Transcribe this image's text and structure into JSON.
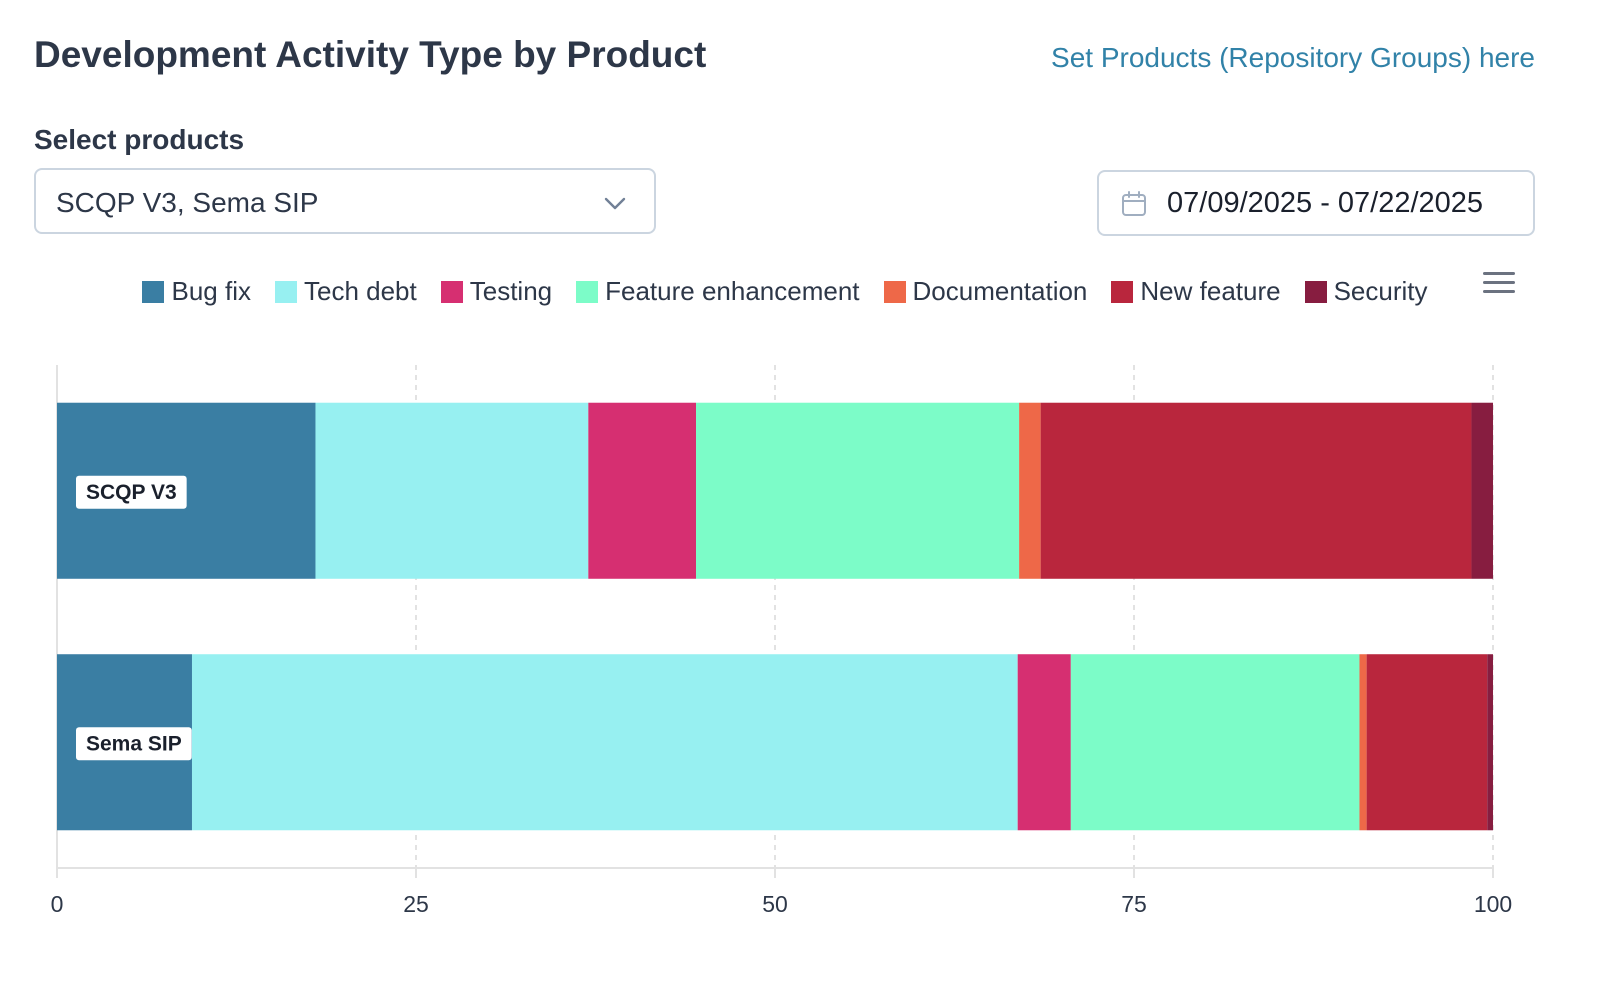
{
  "header": {
    "title": "Development Activity Type by Product",
    "set_products_link": "Set Products (Repository Groups) here"
  },
  "filters": {
    "select_label": "Select products",
    "selected_products": "SCQP V3, Sema SIP",
    "date_range": "07/09/2025 - 07/22/2025"
  },
  "legend": {
    "items": [
      {
        "label": "Bug fix",
        "color": "#3a7ea3"
      },
      {
        "label": "Tech debt",
        "color": "#97f0f1"
      },
      {
        "label": "Testing",
        "color": "#d62f71"
      },
      {
        "label": "Feature enhancement",
        "color": "#7cfcc8"
      },
      {
        "label": "Documentation",
        "color": "#ee6848"
      },
      {
        "label": "New feature",
        "color": "#b9263d"
      },
      {
        "label": "Security",
        "color": "#871d40"
      }
    ]
  },
  "chart_data": {
    "type": "bar",
    "orientation": "horizontal",
    "stacked": true,
    "categories": [
      "SCQP V3",
      "Sema SIP"
    ],
    "series": [
      {
        "name": "Bug fix",
        "values": [
          18.0,
          9.4
        ]
      },
      {
        "name": "Tech debt",
        "values": [
          19.0,
          57.5
        ]
      },
      {
        "name": "Testing",
        "values": [
          7.5,
          3.7
        ]
      },
      {
        "name": "Feature enhancement",
        "values": [
          22.5,
          20.1
        ]
      },
      {
        "name": "Documentation",
        "values": [
          1.5,
          0.5
        ]
      },
      {
        "name": "New feature",
        "values": [
          30.0,
          8.4
        ]
      },
      {
        "name": "Security",
        "values": [
          1.5,
          0.4
        ]
      }
    ],
    "xlim": [
      0,
      100
    ],
    "xticks": [
      0,
      25,
      50,
      75,
      100
    ],
    "grid": true,
    "legend_position": "top-center",
    "title": "",
    "xlabel": "",
    "ylabel": ""
  }
}
